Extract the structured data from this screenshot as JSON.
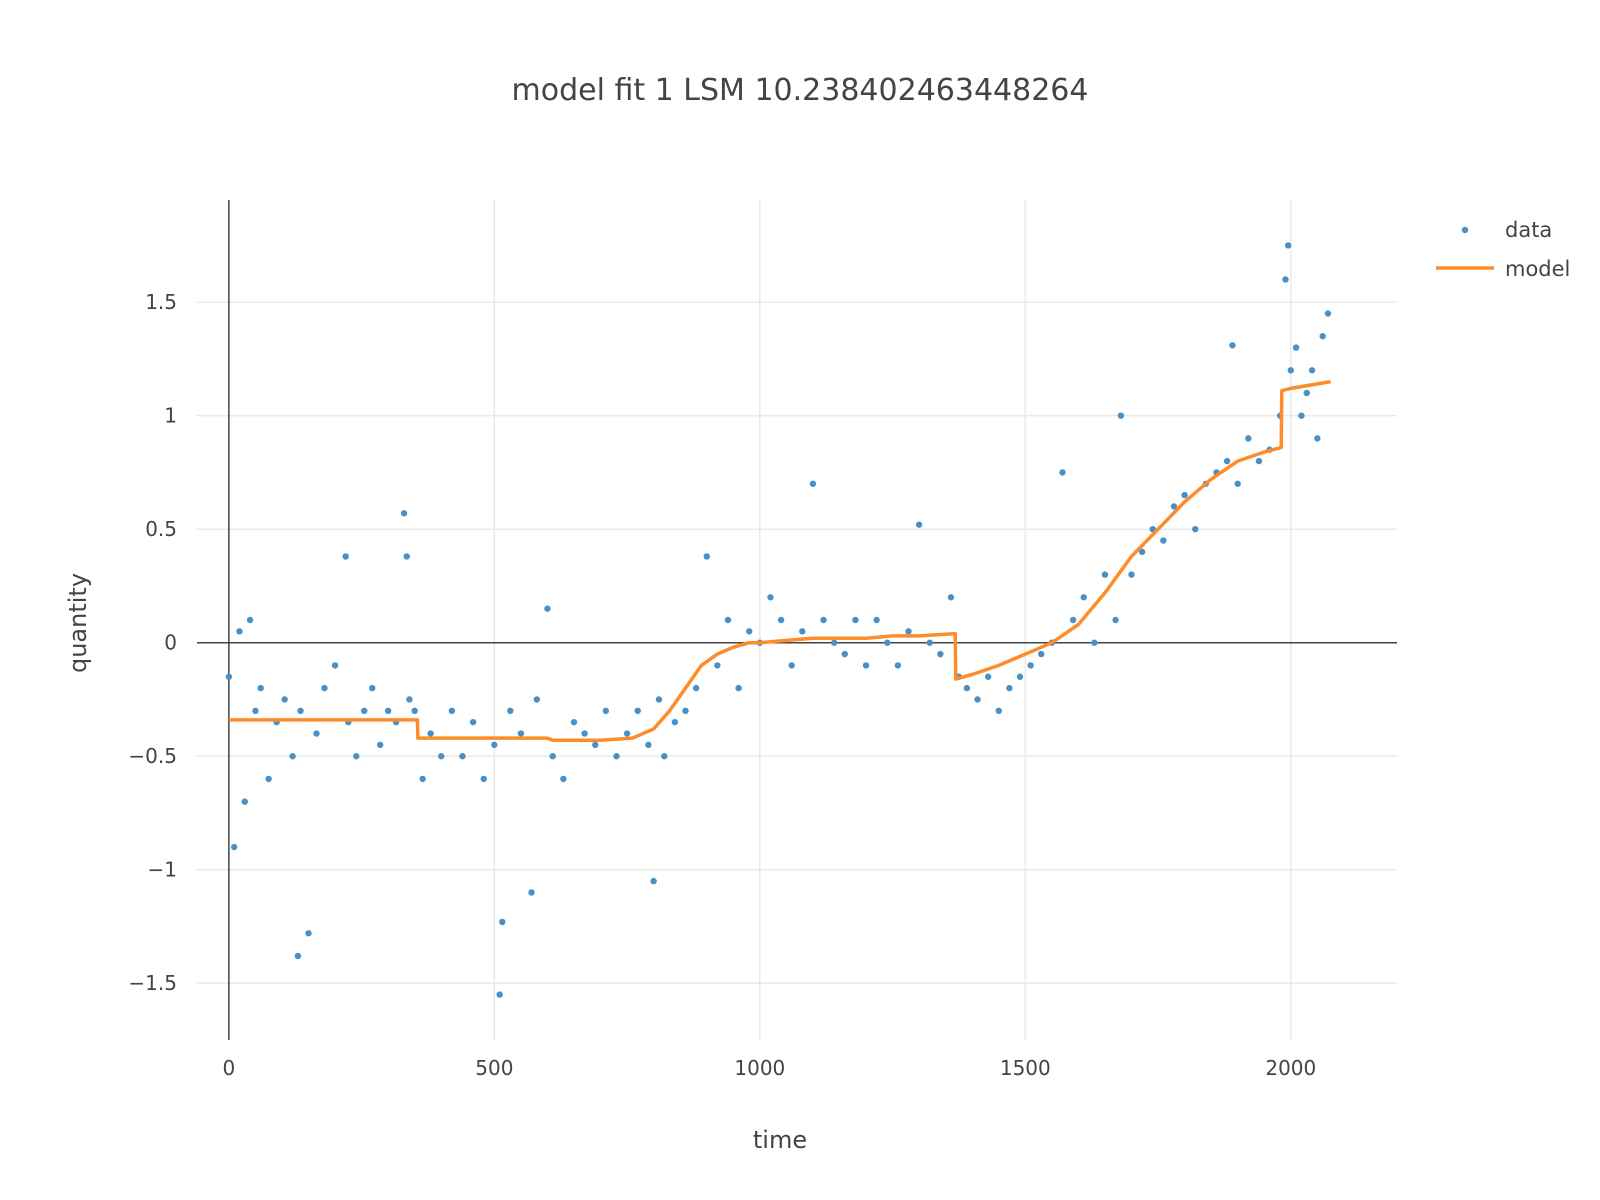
{
  "chart_data": {
    "type": "scatter",
    "title": "model fit 1   LSM 10.238402463448264",
    "xlabel": "time",
    "ylabel": "quantity",
    "xlim": [
      -60,
      2200
    ],
    "ylim": [
      -1.75,
      1.95
    ],
    "x_ticks": [
      0,
      500,
      1000,
      1500,
      2000
    ],
    "x_tick_labels": [
      "0",
      "500",
      "1000",
      "1500",
      "2000"
    ],
    "y_ticks": [
      -1.5,
      -1,
      -0.5,
      0,
      0.5,
      1,
      1.5
    ],
    "y_tick_labels": [
      "−1.5",
      "−1",
      "−0.5",
      "0",
      "0.5",
      "1",
      "1.5"
    ],
    "grid": true,
    "legend_position": "top-right",
    "colors": {
      "data": "#4a90c4",
      "model": "#ff8c2a"
    },
    "series": [
      {
        "name": "data",
        "mode": "markers",
        "x": [
          0,
          10,
          20,
          30,
          40,
          50,
          60,
          75,
          90,
          105,
          120,
          130,
          135,
          150,
          165,
          180,
          200,
          220,
          225,
          240,
          255,
          270,
          285,
          300,
          315,
          330,
          335,
          340,
          350,
          365,
          380,
          400,
          420,
          440,
          460,
          480,
          500,
          510,
          515,
          530,
          550,
          570,
          580,
          600,
          610,
          630,
          650,
          670,
          690,
          710,
          730,
          750,
          770,
          790,
          800,
          810,
          820,
          840,
          860,
          880,
          900,
          920,
          940,
          960,
          980,
          1000,
          1020,
          1040,
          1060,
          1080,
          1100,
          1120,
          1140,
          1160,
          1180,
          1200,
          1220,
          1240,
          1260,
          1280,
          1300,
          1320,
          1340,
          1360,
          1375,
          1390,
          1410,
          1430,
          1450,
          1470,
          1490,
          1510,
          1530,
          1550,
          1570,
          1590,
          1610,
          1630,
          1650,
          1670,
          1680,
          1700,
          1720,
          1740,
          1760,
          1780,
          1800,
          1820,
          1840,
          1860,
          1880,
          1890,
          1900,
          1920,
          1940,
          1960,
          1980,
          1990,
          1995,
          2000,
          2010,
          2020,
          2030,
          2040,
          2050,
          2060,
          2070
        ],
        "y": [
          -0.15,
          -0.9,
          0.05,
          -0.7,
          0.1,
          -0.3,
          -0.2,
          -0.6,
          -0.35,
          -0.25,
          -0.5,
          -1.38,
          -0.3,
          -1.28,
          -0.4,
          -0.2,
          -0.1,
          0.38,
          -0.35,
          -0.5,
          -0.3,
          -0.2,
          -0.45,
          -0.3,
          -0.35,
          0.57,
          0.38,
          -0.25,
          -0.3,
          -0.6,
          -0.4,
          -0.5,
          -0.3,
          -0.5,
          -0.35,
          -0.6,
          -0.45,
          -1.55,
          -1.23,
          -0.3,
          -0.4,
          -1.1,
          -0.25,
          0.15,
          -0.5,
          -0.6,
          -0.35,
          -0.4,
          -0.45,
          -0.3,
          -0.5,
          -0.4,
          -0.3,
          -0.45,
          -1.05,
          -0.25,
          -0.5,
          -0.35,
          -0.3,
          -0.2,
          0.38,
          -0.1,
          0.1,
          -0.2,
          0.05,
          0.0,
          0.2,
          0.1,
          -0.1,
          0.05,
          0.7,
          0.1,
          0.0,
          -0.05,
          0.1,
          -0.1,
          0.1,
          0.0,
          -0.1,
          0.05,
          0.52,
          0.0,
          -0.05,
          0.2,
          -0.15,
          -0.2,
          -0.25,
          -0.15,
          -0.3,
          -0.2,
          -0.15,
          -0.1,
          -0.05,
          0.0,
          0.75,
          0.1,
          0.2,
          0.0,
          0.3,
          0.1,
          1.0,
          0.3,
          0.4,
          0.5,
          0.45,
          0.6,
          0.65,
          0.5,
          0.7,
          0.75,
          0.8,
          1.31,
          0.7,
          0.9,
          0.8,
          0.85,
          1.0,
          1.6,
          1.75,
          1.2,
          1.3,
          1.0,
          1.1,
          1.2,
          0.9,
          1.35,
          1.45
        ]
      },
      {
        "name": "model",
        "mode": "lines",
        "x": [
          0,
          355,
          356,
          600,
          610,
          700,
          760,
          800,
          830,
          860,
          890,
          920,
          950,
          980,
          1000,
          1050,
          1100,
          1150,
          1200,
          1250,
          1300,
          1368,
          1369,
          1400,
          1450,
          1500,
          1550,
          1600,
          1650,
          1700,
          1750,
          1800,
          1850,
          1900,
          1950,
          1982,
          1983,
          2000,
          2050,
          2075
        ],
        "y": [
          -0.34,
          -0.34,
          -0.42,
          -0.42,
          -0.43,
          -0.43,
          -0.42,
          -0.38,
          -0.3,
          -0.2,
          -0.1,
          -0.05,
          -0.02,
          0.0,
          0.0,
          0.01,
          0.02,
          0.02,
          0.02,
          0.03,
          0.03,
          0.04,
          -0.16,
          -0.14,
          -0.1,
          -0.05,
          0.0,
          0.08,
          0.22,
          0.38,
          0.5,
          0.62,
          0.72,
          0.8,
          0.84,
          0.86,
          1.11,
          1.12,
          1.14,
          1.15
        ]
      }
    ]
  }
}
